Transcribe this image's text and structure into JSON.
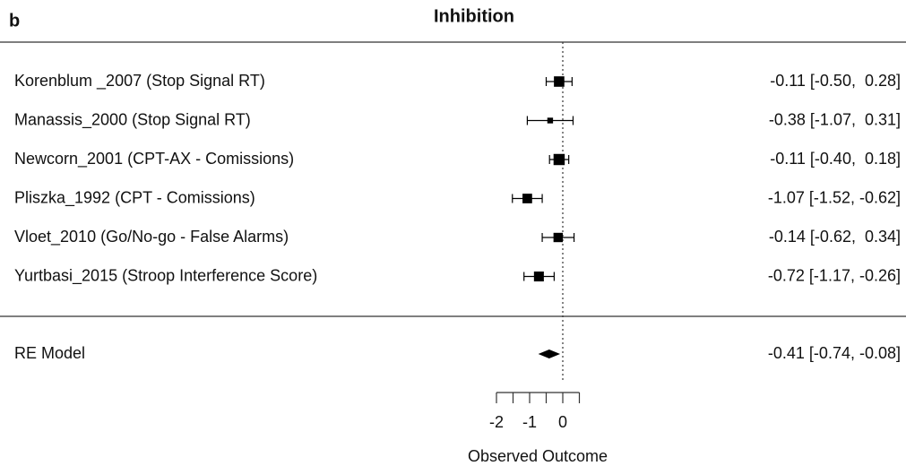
{
  "panel_label": "b",
  "chart_data": {
    "type": "forest",
    "title": "Inhibition",
    "studies": [
      "Korenblum _2007 (Stop Signal RT)",
      "Manassis_2000 (Stop Signal RT)",
      "Newcorn_2001 (CPT-AX - Comissions)",
      "Pliszka_1992 (CPT - Comissions)",
      "Vloet_2010 (Go/No-go - False Alarms)",
      "Yurtbasi_2015 (Stroop Interference Score)"
    ],
    "estimates": [
      -0.11,
      -0.38,
      -0.11,
      -1.07,
      -0.14,
      -0.72
    ],
    "lower": [
      -0.5,
      -1.07,
      -0.4,
      -1.52,
      -0.62,
      -1.17
    ],
    "upper": [
      0.28,
      0.31,
      0.18,
      -0.62,
      0.34,
      -0.26
    ],
    "weights": [
      20,
      6,
      23,
      17,
      16,
      18
    ],
    "value_labels": [
      "-0.11 [-0.50,  0.28]",
      "-0.38 [-1.07,  0.31]",
      "-0.11 [-0.40,  0.18]",
      "-1.07 [-1.52, -0.62]",
      "-0.14 [-0.62,  0.34]",
      "-0.72 [-1.17, -0.26]"
    ],
    "summary": {
      "name": "RE Model",
      "estimate": -0.41,
      "lower": -0.74,
      "upper": -0.08,
      "value_label": "-0.41 [-0.74, -0.08]"
    },
    "x_label": "Observed Outcome",
    "xlim": [
      -2,
      0.5
    ],
    "xticks": [
      -2,
      -1,
      0
    ],
    "xminor_ticks": [
      -1.5,
      -0.5,
      0.5
    ],
    "reference_line": 0,
    "color": "#000000"
  }
}
